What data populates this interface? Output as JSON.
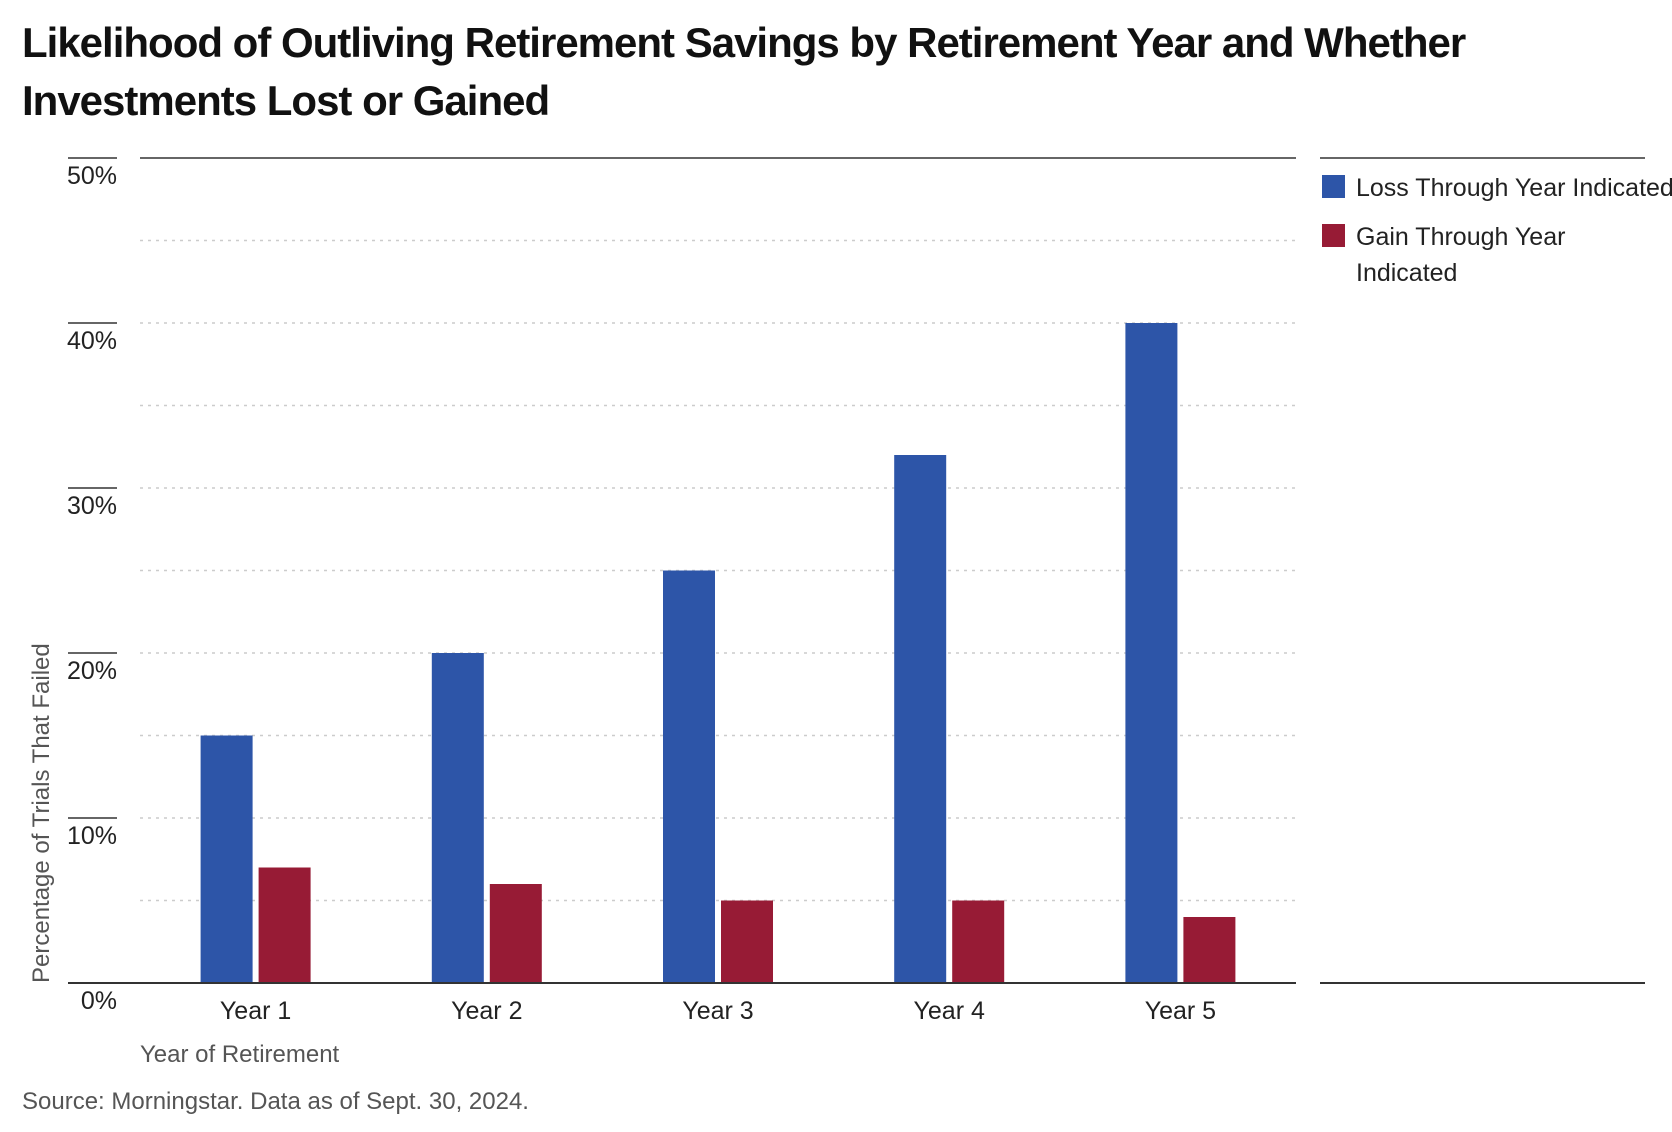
{
  "chart_data": {
    "type": "bar",
    "title": "Likelihood of Outliving Retirement Savings by Retirement Year and Whether Investments Lost or Gained",
    "xlabel": "Year of Retirement",
    "ylabel": "Percentage of Trials That Failed",
    "categories": [
      "Year 1",
      "Year 2",
      "Year 3",
      "Year 4",
      "Year 5"
    ],
    "series": [
      {
        "name": "Loss Through Year Indicated",
        "color": "#2d55a8",
        "values": [
          15,
          20,
          25,
          32,
          40
        ]
      },
      {
        "name": "Gain Through Year Indicated",
        "color": "#971b35",
        "values": [
          7,
          6,
          5,
          5,
          4
        ]
      }
    ],
    "ylim": [
      0,
      50
    ],
    "yticks": [
      0,
      10,
      20,
      30,
      40,
      50
    ],
    "ytick_labels": [
      "0%",
      "10%",
      "20%",
      "30%",
      "40%",
      "50%"
    ],
    "grid": true,
    "legend": "top-right",
    "source": "Source: Morningstar. Data as of Sept. 30, 2024."
  }
}
